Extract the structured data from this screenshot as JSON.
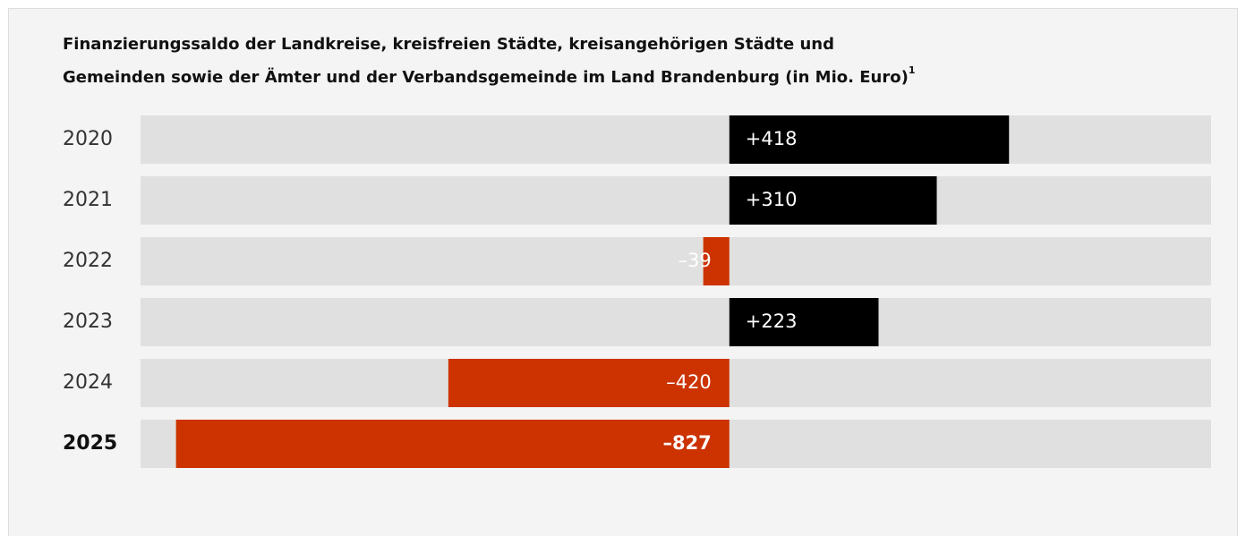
{
  "chart_data": {
    "type": "bar",
    "orientation": "horizontal",
    "title": [
      "Finanzierungssaldo der Landkreise, kreisfreien Städte, kreisangehörigen Städte und",
      "Gemeinden sowie der Ämter und der Verbandsgemeinde im Land Brandenburg (in Mio. Euro)"
    ],
    "title_footnote": "1",
    "categories": [
      "2020",
      "2021",
      "2022",
      "2023",
      "2024",
      "2025"
    ],
    "values": [
      418,
      310,
      -39,
      223,
      -420,
      -827
    ],
    "value_labels": [
      "+418",
      "+310",
      "–39",
      "+223",
      "–420",
      "–827"
    ],
    "xlim": [
      -880,
      720
    ],
    "color_positive": "#000000",
    "color_negative": "#cc3300",
    "highlight_index": 5
  }
}
